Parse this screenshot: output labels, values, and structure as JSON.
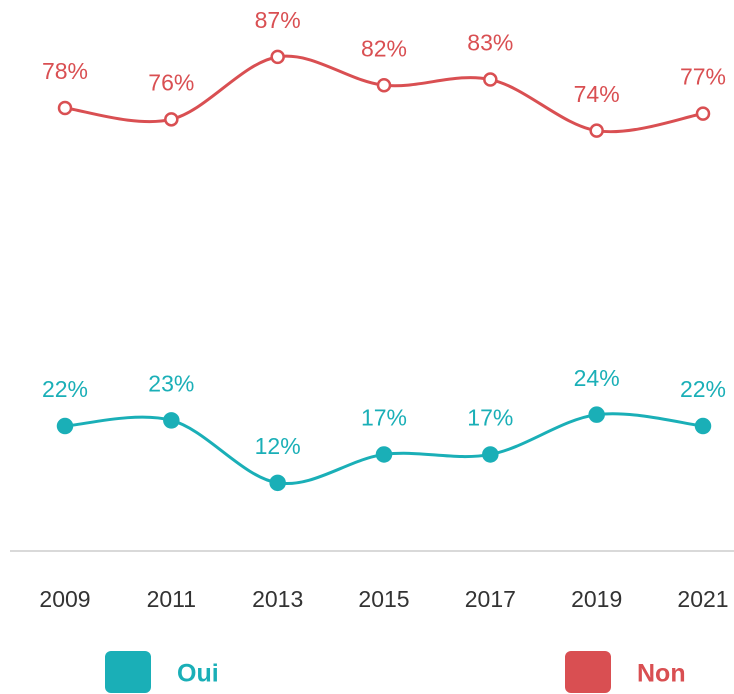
{
  "chart_data": {
    "type": "line",
    "categories": [
      "2009",
      "2011",
      "2013",
      "2015",
      "2017",
      "2019",
      "2021"
    ],
    "series": [
      {
        "name": "Oui",
        "color": "#1aafb7",
        "values": [
          22,
          23,
          12,
          17,
          17,
          24,
          22
        ],
        "value_labels": [
          "22%",
          "23%",
          "12%",
          "17%",
          "17%",
          "24%",
          "22%"
        ]
      },
      {
        "name": "Non",
        "color": "#d94f52",
        "values": [
          78,
          76,
          87,
          82,
          83,
          74,
          77
        ],
        "value_labels": [
          "78%",
          "76%",
          "87%",
          "82%",
          "83%",
          "74%",
          "77%"
        ]
      }
    ],
    "ylim": [
      0,
      100
    ]
  }
}
